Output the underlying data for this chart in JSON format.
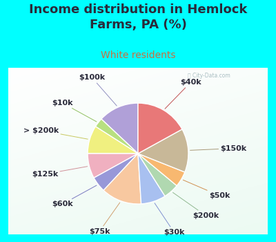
{
  "title": "Income distribution in Hemlock\nFarms, PA (%)",
  "subtitle": "White residents",
  "background_outer": "#00FFFF",
  "background_chart": "#e8f5f0",
  "title_color": "#2a2a3a",
  "subtitle_color": "#c87040",
  "title_fontsize": 13,
  "subtitle_fontsize": 10,
  "label_fontsize": 8,
  "labels": [
    "$100k",
    "$10k",
    "> $200k",
    "$125k",
    "$60k",
    "$75k",
    "$30k",
    "$200k",
    "$50k",
    "$150k",
    "$40k"
  ],
  "sizes": [
    13,
    3,
    9,
    8,
    5,
    13,
    8,
    5,
    5,
    14,
    17
  ],
  "colors": [
    "#b0a0d8",
    "#b8e080",
    "#f0f080",
    "#f0b0c0",
    "#9898d8",
    "#f8c8a0",
    "#a8c0f0",
    "#b0d8b0",
    "#f8b870",
    "#c8b898",
    "#e87878"
  ],
  "line_colors": [
    "#9090c0",
    "#90c060",
    "#c8c860",
    "#d09098",
    "#7878c0",
    "#d0a070",
    "#8090d0",
    "#90b890",
    "#d09050",
    "#a89878",
    "#c05050"
  ],
  "startangle": 90
}
